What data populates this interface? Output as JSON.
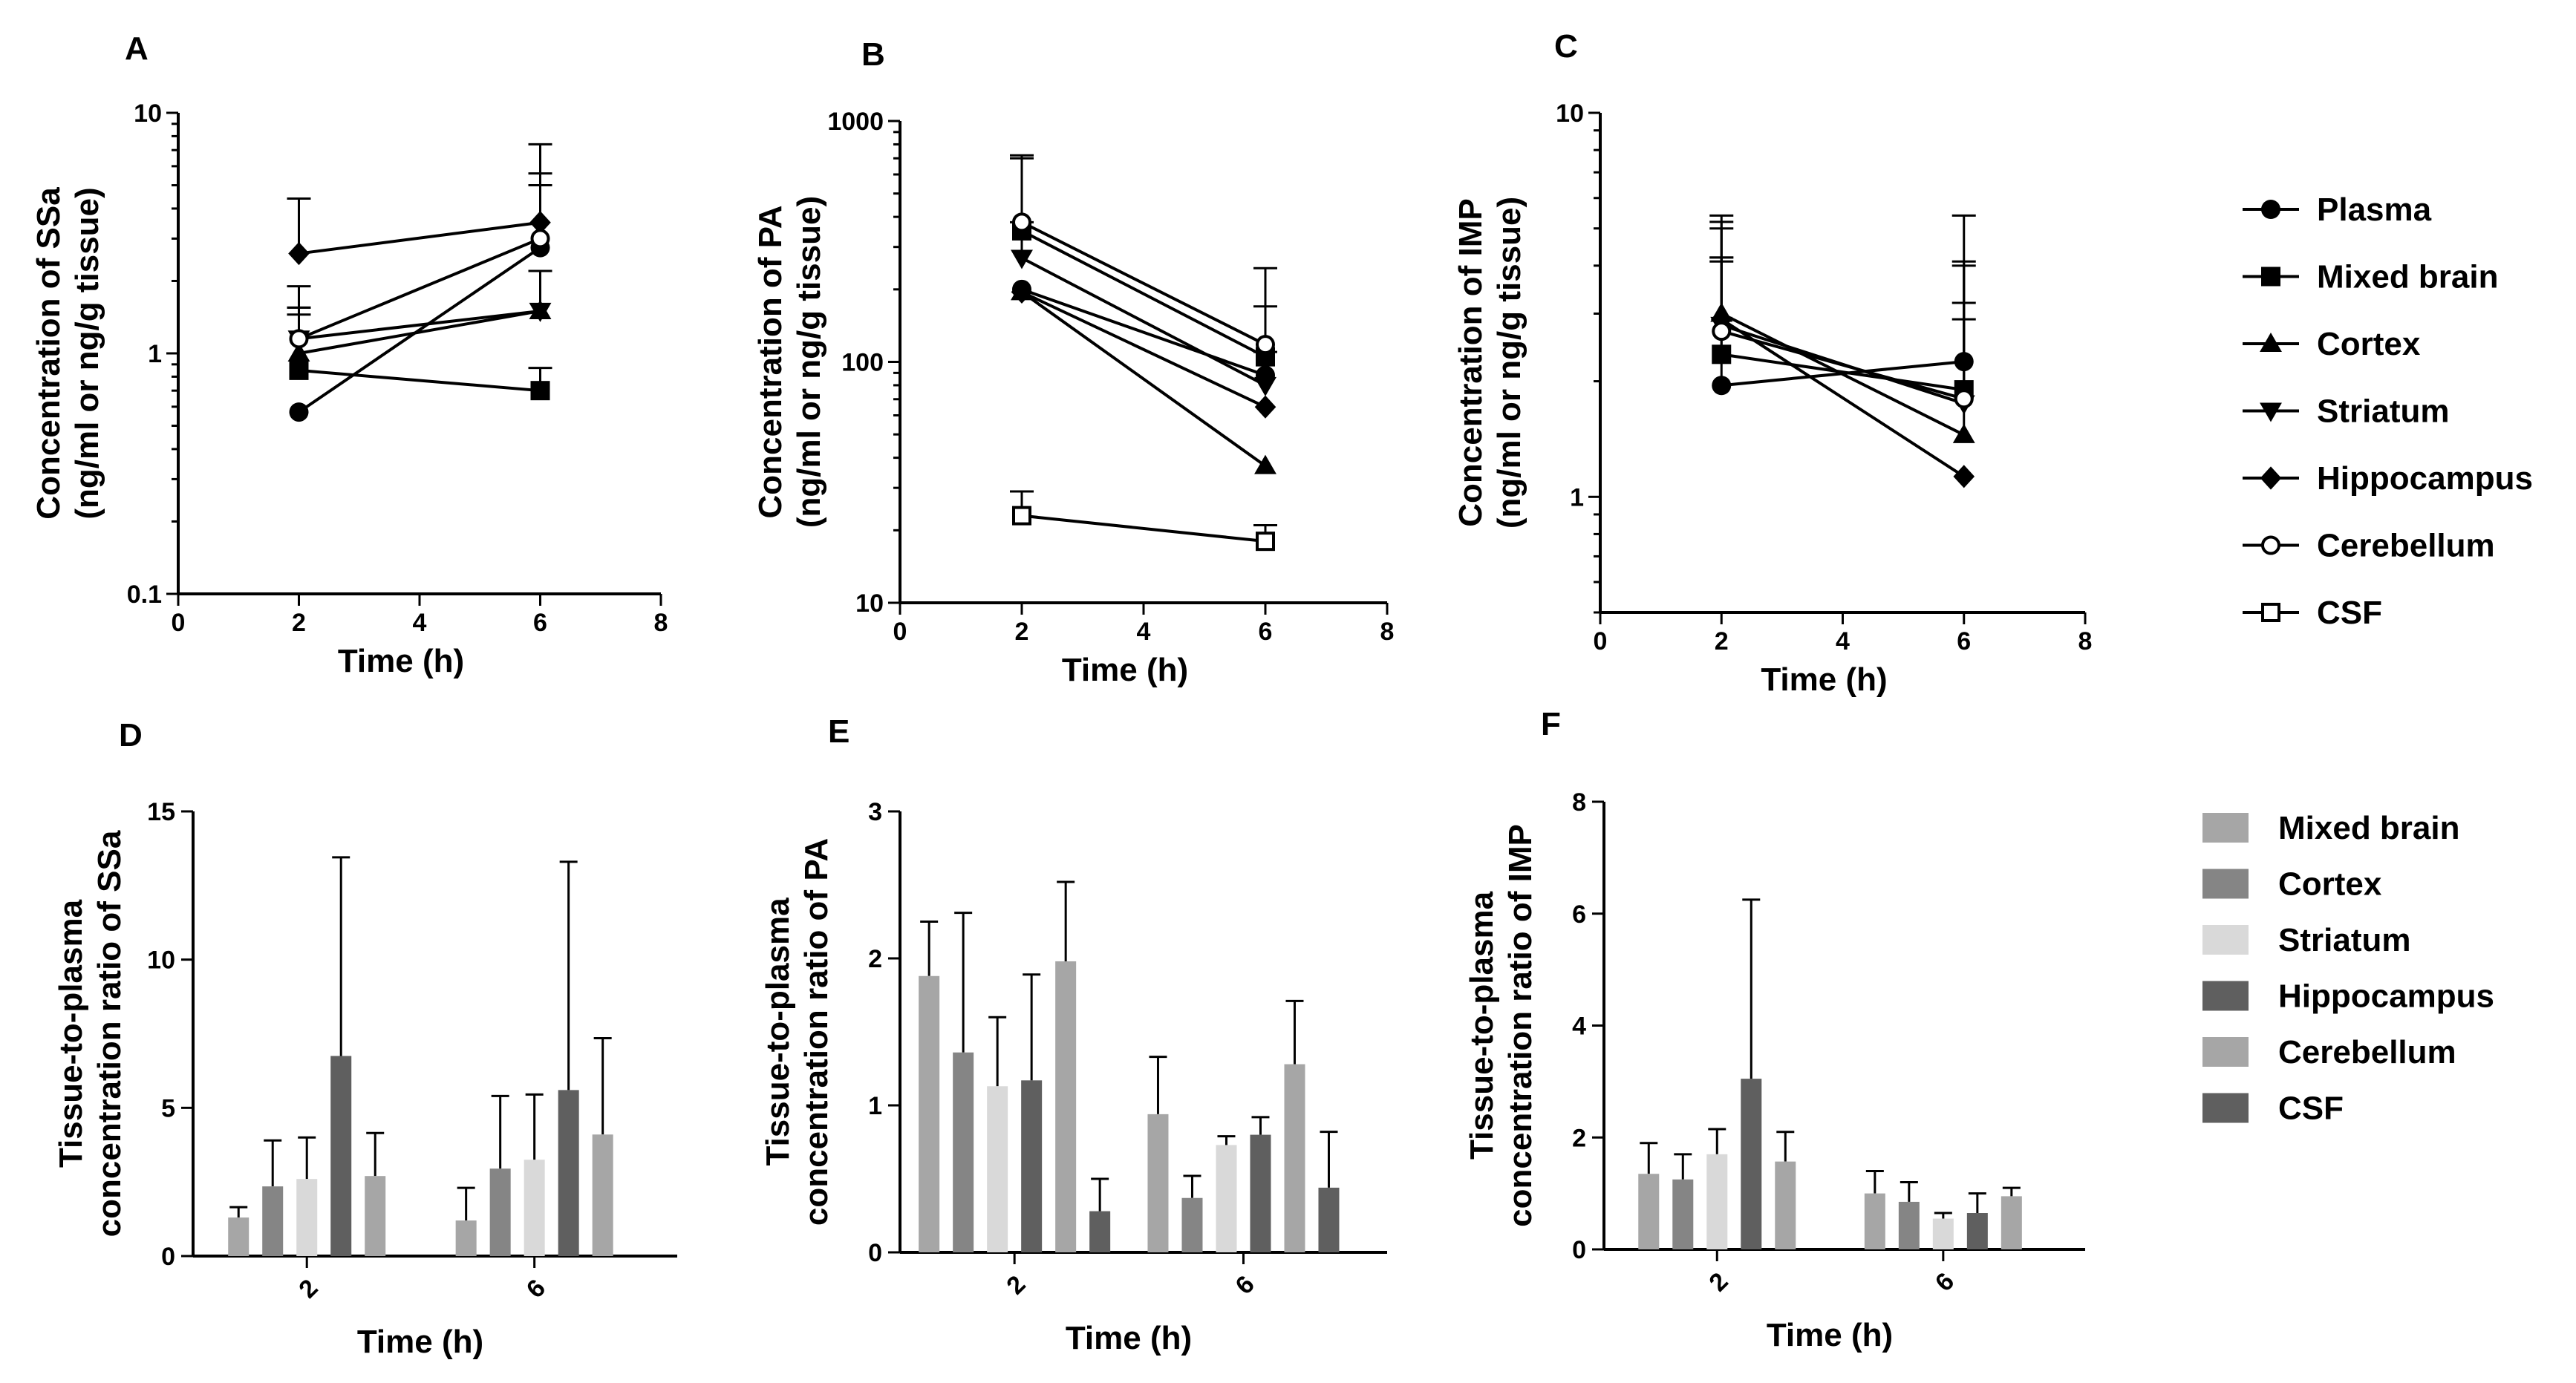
{
  "figure": {
    "line_legend": {
      "entries": [
        {
          "key": "plasma",
          "label": "Plasma",
          "marker": "circle-filled"
        },
        {
          "key": "mixed",
          "label": "Mixed brain",
          "marker": "square-filled"
        },
        {
          "key": "cortex",
          "label": "Cortex",
          "marker": "triangle-up-filled"
        },
        {
          "key": "striatum",
          "label": "Striatum",
          "marker": "triangle-down-filled"
        },
        {
          "key": "hippocampus",
          "label": "Hippocampus",
          "marker": "diamond-filled"
        },
        {
          "key": "cerebellum",
          "label": "Cerebellum",
          "marker": "circle-open"
        },
        {
          "key": "csf",
          "label": "CSF",
          "marker": "square-open"
        }
      ]
    },
    "bar_legend": {
      "entries": [
        {
          "key": "mixed",
          "label": "Mixed brain",
          "color": "#a6a6a6"
        },
        {
          "key": "cortex",
          "label": "Cortex",
          "color": "#858585"
        },
        {
          "key": "striatum",
          "label": "Striatum",
          "color": "#d9d9d9"
        },
        {
          "key": "hippocampus",
          "label": "Hippocampus",
          "color": "#5f5f5f"
        },
        {
          "key": "cerebellum",
          "label": "Cerebellum",
          "color": "#a6a6a6"
        },
        {
          "key": "csf",
          "label": "CSF",
          "color": "#5f5f5f"
        }
      ]
    }
  },
  "chart_data": [
    {
      "panel": "A",
      "type": "line",
      "scale": "log",
      "xlabel": "Time (h)",
      "ylabel": [
        "Concentration of SSa",
        "(ng/ml or ng/g tissue)"
      ],
      "xlim": [
        0,
        8
      ],
      "xticks": [
        "0",
        "2",
        "4",
        "6",
        "8"
      ],
      "ylim": [
        0.1,
        10
      ],
      "yticks": [
        {
          "value": 0.1,
          "label": "0.1"
        },
        {
          "value": 1,
          "label": "1"
        },
        {
          "value": 10,
          "label": "10"
        }
      ],
      "x": [
        2,
        6
      ],
      "series": [
        {
          "key": "plasma",
          "values": [
            0.57,
            2.75
          ],
          "err_up": [
            0.57,
            5.6
          ]
        },
        {
          "key": "mixed",
          "values": [
            0.85,
            0.7
          ],
          "err_up": [
            1.55,
            0.87
          ]
        },
        {
          "key": "cortex",
          "values": [
            1.0,
            1.5
          ],
          "err_up": [
            1.55,
            2.2
          ]
        },
        {
          "key": "striatum",
          "values": [
            1.15,
            1.5
          ],
          "err_up": [
            1.45,
            2.2
          ]
        },
        {
          "key": "hippocampus",
          "values": [
            2.6,
            3.5
          ],
          "err_up": [
            4.4,
            7.4
          ]
        },
        {
          "key": "cerebellum",
          "values": [
            1.15,
            3.0
          ],
          "err_up": [
            1.9,
            5.0
          ]
        }
      ]
    },
    {
      "panel": "B",
      "type": "line",
      "scale": "log",
      "xlabel": "Time (h)",
      "ylabel": [
        "Concentration of PA",
        "(ng/ml or ng/g tissue)"
      ],
      "xlim": [
        0,
        8
      ],
      "xticks": [
        "0",
        "2",
        "4",
        "6",
        "8"
      ],
      "ylim": [
        10,
        1000
      ],
      "yticks": [
        {
          "value": 10,
          "label": "10"
        },
        {
          "value": 100,
          "label": "100"
        },
        {
          "value": 1000,
          "label": "1000"
        }
      ],
      "x": [
        2,
        6
      ],
      "series": [
        {
          "key": "plasma",
          "values": [
            200,
            88
          ],
          "err_up": [
            200,
            88
          ]
        },
        {
          "key": "mixed",
          "values": [
            350,
            105
          ],
          "err_up": [
            700,
            170
          ]
        },
        {
          "key": "cortex",
          "values": [
            195,
            37
          ],
          "err_up": [
            195,
            37
          ]
        },
        {
          "key": "striatum",
          "values": [
            270,
            80
          ],
          "err_up": [
            380,
            110
          ]
        },
        {
          "key": "hippocampus",
          "values": [
            195,
            65
          ],
          "err_up": [
            195,
            65
          ]
        },
        {
          "key": "cerebellum",
          "values": [
            380,
            118
          ],
          "err_up": [
            720,
            245
          ]
        },
        {
          "key": "csf",
          "values": [
            23,
            18
          ],
          "err_up": [
            29,
            21
          ]
        }
      ]
    },
    {
      "panel": "C",
      "type": "line",
      "scale": "log",
      "xlabel": "Time (h)",
      "ylabel": [
        "Concentration of IMP",
        "(ng/ml or ng/g tissue)"
      ],
      "xlim": [
        0,
        8
      ],
      "xticks": [
        "0",
        "2",
        "4",
        "6",
        "8"
      ],
      "ylim": [
        0.5,
        10
      ],
      "yticks": [
        {
          "value": 1,
          "label": "1"
        },
        {
          "value": 10,
          "label": "10"
        }
      ],
      "x": [
        2,
        6
      ],
      "series": [
        {
          "key": "plasma",
          "values": [
            1.95,
            2.25
          ],
          "err_up": [
            4.1,
            5.4
          ]
        },
        {
          "key": "mixed",
          "values": [
            2.35,
            1.9
          ],
          "err_up": [
            4.2,
            4.0
          ]
        },
        {
          "key": "cortex",
          "values": [
            3.0,
            1.45
          ],
          "err_up": [
            5.4,
            2.9
          ]
        },
        {
          "key": "striatum",
          "values": [
            2.8,
            1.75
          ],
          "err_up": [
            5.2,
            4.1
          ]
        },
        {
          "key": "hippocampus",
          "values": [
            2.9,
            1.13
          ],
          "err_up": [
            4.2,
            1.13
          ]
        },
        {
          "key": "cerebellum",
          "values": [
            2.7,
            1.8
          ],
          "err_up": [
            5.0,
            3.2
          ]
        }
      ]
    },
    {
      "panel": "D",
      "type": "bar",
      "xlabel": "Time (h)",
      "ylabel": [
        "Tissue-to-plasma",
        "concentration ratio of SSa"
      ],
      "categories": [
        "2",
        "6"
      ],
      "ylim": [
        0,
        15
      ],
      "yticks": [
        "0",
        "5",
        "10",
        "15"
      ],
      "series": [
        {
          "key": "mixed",
          "values": [
            1.3,
            1.2
          ],
          "err": [
            0.35,
            1.1
          ]
        },
        {
          "key": "cortex",
          "values": [
            2.35,
            2.95
          ],
          "err": [
            1.55,
            2.45
          ]
        },
        {
          "key": "striatum",
          "values": [
            2.6,
            3.25
          ],
          "err": [
            1.4,
            2.2
          ]
        },
        {
          "key": "hippocampus",
          "values": [
            6.75,
            5.6
          ],
          "err": [
            6.7,
            7.7
          ]
        },
        {
          "key": "cerebellum",
          "values": [
            2.7,
            4.1
          ],
          "err": [
            1.45,
            3.25
          ]
        }
      ]
    },
    {
      "panel": "E",
      "type": "bar",
      "xlabel": "Time (h)",
      "ylabel": [
        "Tissue-to-plasma",
        "concentration ratio of PA"
      ],
      "categories": [
        "2",
        "6"
      ],
      "ylim": [
        0,
        3
      ],
      "yticks": [
        "0",
        "1",
        "2",
        "3"
      ],
      "series": [
        {
          "key": "mixed",
          "values": [
            1.88,
            0.94
          ],
          "err": [
            0.37,
            0.39
          ]
        },
        {
          "key": "cortex",
          "values": [
            1.36,
            0.37
          ],
          "err": [
            0.95,
            0.15
          ]
        },
        {
          "key": "striatum",
          "values": [
            1.13,
            0.73
          ],
          "err": [
            0.47,
            0.06
          ]
        },
        {
          "key": "hippocampus",
          "values": [
            1.17,
            0.8
          ],
          "err": [
            0.72,
            0.12
          ]
        },
        {
          "key": "cerebellum",
          "values": [
            1.98,
            1.28
          ],
          "err": [
            0.54,
            0.43
          ]
        },
        {
          "key": "csf",
          "values": [
            0.28,
            0.44
          ],
          "err": [
            0.22,
            0.38
          ]
        }
      ]
    },
    {
      "panel": "F",
      "type": "bar",
      "xlabel": "Time (h)",
      "ylabel": [
        "Tissue-to-plasma",
        "concentration ratio of IMP"
      ],
      "categories": [
        "2",
        "6"
      ],
      "ylim": [
        0,
        8
      ],
      "yticks": [
        "0",
        "2",
        "4",
        "6",
        "8"
      ],
      "series": [
        {
          "key": "mixed",
          "values": [
            1.35,
            1.0
          ],
          "err": [
            0.55,
            0.4
          ]
        },
        {
          "key": "cortex",
          "values": [
            1.25,
            0.85
          ],
          "err": [
            0.45,
            0.35
          ]
        },
        {
          "key": "striatum",
          "values": [
            1.7,
            0.55
          ],
          "err": [
            0.45,
            0.1
          ]
        },
        {
          "key": "hippocampus",
          "values": [
            3.05,
            0.65
          ],
          "err": [
            3.2,
            0.35
          ]
        },
        {
          "key": "cerebellum",
          "values": [
            1.57,
            0.95
          ],
          "err": [
            0.53,
            0.15
          ]
        }
      ]
    }
  ]
}
